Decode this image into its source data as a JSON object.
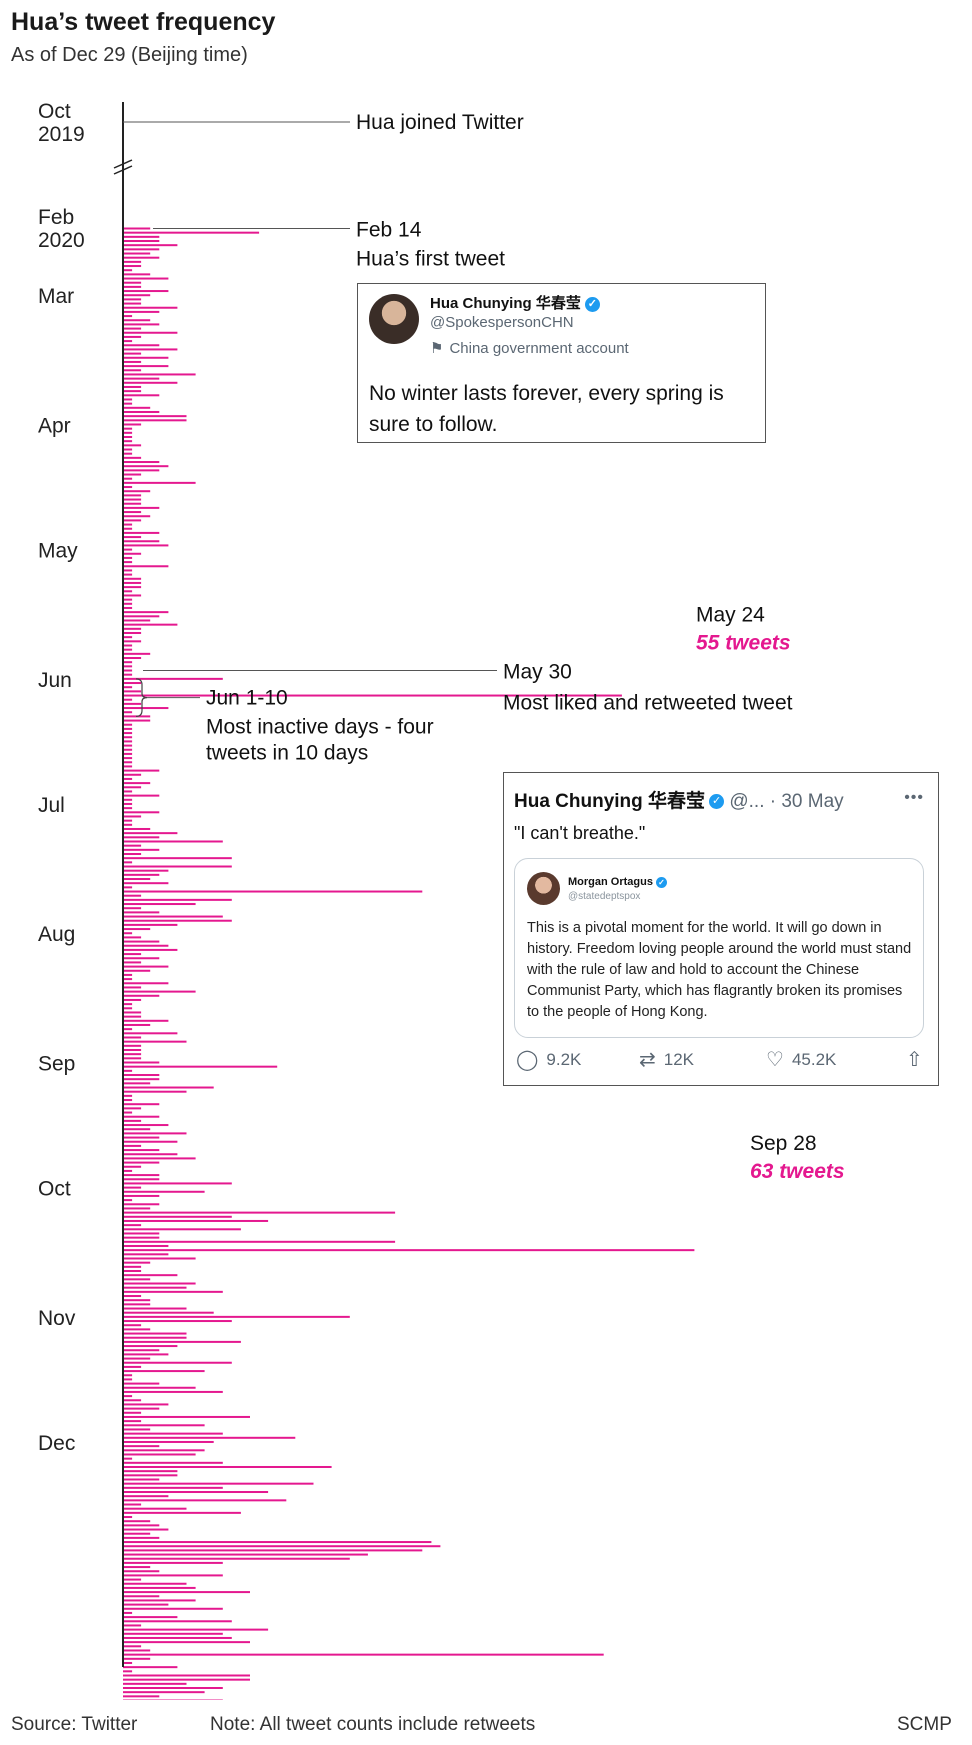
{
  "header": {
    "title": "Hua’s tweet frequency",
    "subtitle": "As of Dec 29 (Beijing time)"
  },
  "chart_data": {
    "type": "bar",
    "orientation": "horizontal",
    "title": "Hua’s tweet frequency",
    "subtitle": "As of Dec 29 (Beijing time)",
    "xlabel": "",
    "ylabel": "",
    "xlim": [
      0,
      63
    ],
    "unit_per_bar": "tweets per day",
    "start_date": "2020-02-14",
    "end_date": "2020-12-29",
    "month_labels": [
      {
        "label": [
          "Oct",
          "2019"
        ],
        "date": "2019-10"
      },
      {
        "label": [
          "Feb",
          "2020"
        ],
        "date": "2020-02"
      },
      {
        "label": [
          "Mar"
        ],
        "date": "2020-03-01"
      },
      {
        "label": [
          "Apr"
        ],
        "date": "2020-04-01"
      },
      {
        "label": [
          "May"
        ],
        "date": "2020-05-01"
      },
      {
        "label": [
          "Jun"
        ],
        "date": "2020-06-01"
      },
      {
        "label": [
          "Jul"
        ],
        "date": "2020-07-01"
      },
      {
        "label": [
          "Aug"
        ],
        "date": "2020-08-01"
      },
      {
        "label": [
          "Sep"
        ],
        "date": "2020-09-01"
      },
      {
        "label": [
          "Oct"
        ],
        "date": "2020-10-01"
      },
      {
        "label": [
          "Nov"
        ],
        "date": "2020-11-01"
      },
      {
        "label": [
          "Dec"
        ],
        "date": "2020-12-01"
      }
    ],
    "series": [
      {
        "name": "",
        "color": "#e4188f",
        "values": [
          3,
          15,
          4,
          4,
          6,
          4,
          3,
          4,
          2,
          2,
          1,
          3,
          5,
          2,
          2,
          5,
          3,
          2,
          2,
          6,
          4,
          1,
          3,
          4,
          2,
          6,
          2,
          1,
          4,
          6,
          2,
          5,
          2,
          5,
          2,
          8,
          4,
          6,
          2,
          2,
          4,
          1,
          1,
          3,
          4,
          7,
          7,
          2,
          1,
          1,
          1,
          1,
          2,
          1,
          1,
          2,
          4,
          5,
          4,
          2,
          1,
          8,
          1,
          3,
          2,
          2,
          2,
          4,
          2,
          3,
          2,
          1,
          1,
          4,
          2,
          4,
          5,
          1,
          2,
          1,
          1,
          5,
          1,
          1,
          2,
          2,
          2,
          1,
          2,
          1,
          1,
          1,
          5,
          4,
          3,
          6,
          2,
          2,
          1,
          2,
          1,
          1,
          3,
          2,
          1,
          1,
          1,
          1,
          11,
          2,
          1,
          2,
          55,
          1,
          2,
          5,
          1,
          3,
          3,
          1,
          1,
          1,
          1,
          1,
          1,
          1,
          1,
          1,
          1,
          1,
          4,
          2,
          1,
          3,
          2,
          1,
          4,
          1,
          1,
          1,
          4,
          2,
          1,
          1,
          3,
          6,
          4,
          11,
          2,
          4,
          2,
          12,
          1,
          12,
          5,
          4,
          3,
          5,
          1,
          33,
          2,
          12,
          8,
          2,
          4,
          11,
          12,
          6,
          3,
          1,
          2,
          4,
          5,
          6,
          2,
          4,
          2,
          5,
          3,
          1,
          1,
          5,
          2,
          8,
          4,
          2,
          1,
          1,
          2,
          2,
          5,
          3,
          1,
          6,
          2,
          7,
          2,
          2,
          2,
          2,
          4,
          17,
          1,
          4,
          4,
          3,
          10,
          7,
          1,
          1,
          4,
          2,
          1,
          4,
          2,
          5,
          3,
          7,
          4,
          6,
          2,
          4,
          6,
          8,
          4,
          2,
          1,
          4,
          4,
          12,
          2,
          9,
          4,
          1,
          4,
          3,
          30,
          12,
          16,
          2,
          13,
          4,
          4,
          30,
          5,
          63,
          5,
          8,
          3,
          2,
          2,
          6,
          3,
          8,
          7,
          11,
          2,
          3,
          3,
          7,
          10,
          25,
          12,
          2,
          3,
          7,
          7,
          13,
          6,
          4,
          5,
          3,
          12,
          2,
          9,
          1,
          1,
          4,
          8,
          11,
          1,
          2,
          5,
          4,
          2,
          14,
          2,
          9,
          3,
          11,
          19,
          10,
          4,
          9,
          8,
          1,
          11,
          23,
          6,
          6,
          4,
          21,
          11,
          16,
          5,
          18,
          2,
          7,
          13,
          1,
          3,
          4,
          5,
          3,
          4,
          34,
          35,
          33,
          27,
          25,
          11,
          3,
          4,
          11,
          2,
          7,
          8,
          14,
          4,
          8,
          5,
          11,
          1,
          6,
          12,
          2,
          16,
          11,
          12,
          14,
          2,
          3,
          53,
          3,
          1,
          6,
          1,
          14,
          14,
          7,
          11,
          9,
          4,
          11,
          1,
          10
        ]
      }
    ],
    "annotations": [
      {
        "date": "2019-10",
        "lines": [
          "Hua joined Twitter"
        ],
        "highlight": ""
      },
      {
        "date": "2020-02-14",
        "lines": [
          "Feb 14",
          "Hua’s first tweet"
        ],
        "highlight": ""
      },
      {
        "date": "2020-05-24",
        "lines": [
          "May 24"
        ],
        "highlight": "55 tweets",
        "value": 55
      },
      {
        "date": "2020-05-30",
        "lines": [
          "May 30",
          "Most liked and retweeted tweet"
        ],
        "highlight": ""
      },
      {
        "date": "2020-06-01/2020-06-10",
        "lines": [
          "Jun 1-10",
          "Most inactive days - four",
          "tweets in 10 days"
        ],
        "highlight": ""
      },
      {
        "date": "2020-09-28",
        "lines": [
          "Sep 28"
        ],
        "highlight": "63 tweets",
        "value": 63
      }
    ],
    "colors": {
      "bars": "#e4188f",
      "axis": "#222222",
      "highlight": "#e4188f"
    }
  },
  "tweet_feb14": {
    "name": "Hua Chunying 华春莹",
    "handle": "@SpokespersonCHN",
    "account_label": "China government account",
    "text": "No winter lasts forever, every spring is sure to follow.",
    "icons": [
      "avatar",
      "verified-icon",
      "flag-icon"
    ]
  },
  "tweet_may30": {
    "name": "Hua Chunying 华春莹",
    "handle": "@...",
    "date": "· 30 May",
    "text": "\"I can't breathe.\"",
    "quoted": {
      "name": "Morgan Ortagus",
      "handle": "@statedeptspox",
      "text": "This is a pivotal moment for the world. It will go down in history. Freedom loving people around the world must stand with the rule of law and hold to account the Chinese Communist Party, which has flagrantly broken its promises to the people of Hong Kong."
    },
    "stats": {
      "replies": "9.2K",
      "retweets": "12K",
      "likes": "45.2K"
    },
    "icons": [
      "verified-icon",
      "more-icon",
      "reply-icon",
      "retweet-icon",
      "like-icon",
      "share-icon"
    ]
  },
  "footer": {
    "source": "Source: Twitter",
    "note": "Note: All tweet counts include retweets",
    "credit": "SCMP"
  }
}
